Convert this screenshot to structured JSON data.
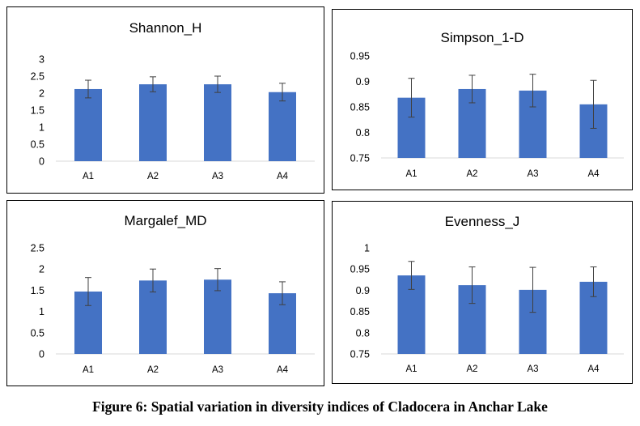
{
  "figure": {
    "caption": "Figure 6: Spatial variation in diversity indices of Cladocera in Anchar Lake"
  },
  "colors": {
    "bar": "#4472C4",
    "error_bar": "#404040",
    "axis": "#D9D9D9"
  },
  "chart_data": [
    {
      "type": "bar",
      "title": "Shannon_H",
      "categories": [
        "A1",
        "A2",
        "A3",
        "A4"
      ],
      "values": [
        2.12,
        2.26,
        2.26,
        2.03
      ],
      "error": [
        0.26,
        0.22,
        0.24,
        0.26
      ],
      "ylim": [
        0,
        3
      ],
      "yticks": [
        "0",
        "0.5",
        "1",
        "1.5",
        "2",
        "2.5",
        "3"
      ],
      "ytick_values": [
        0,
        0.5,
        1,
        1.5,
        2,
        2.5,
        3
      ],
      "grid": false,
      "legend": "none"
    },
    {
      "type": "bar",
      "title": "Simpson_1-D",
      "categories": [
        "A1",
        "A2",
        "A3",
        "A4"
      ],
      "values": [
        0.868,
        0.885,
        0.882,
        0.855
      ],
      "error": [
        0.038,
        0.027,
        0.032,
        0.047
      ],
      "ylim": [
        0.75,
        0.95
      ],
      "yticks": [
        "0.75",
        "0.8",
        "0.85",
        "0.9",
        "0.95"
      ],
      "ytick_values": [
        0.75,
        0.8,
        0.85,
        0.9,
        0.95
      ],
      "grid": false,
      "legend": "none"
    },
    {
      "type": "bar",
      "title": "Margalef_MD",
      "categories": [
        "A1",
        "A2",
        "A3",
        "A4"
      ],
      "values": [
        1.47,
        1.73,
        1.75,
        1.43
      ],
      "error": [
        0.33,
        0.27,
        0.26,
        0.27
      ],
      "ylim": [
        0,
        2.5
      ],
      "yticks": [
        "0",
        "0.5",
        "1",
        "1.5",
        "2",
        "2.5"
      ],
      "ytick_values": [
        0,
        0.5,
        1,
        1.5,
        2,
        2.5
      ],
      "grid": false,
      "legend": "none"
    },
    {
      "type": "bar",
      "title": "Evenness_J",
      "categories": [
        "A1",
        "A2",
        "A3",
        "A4"
      ],
      "values": [
        0.935,
        0.912,
        0.901,
        0.92
      ],
      "error": [
        0.033,
        0.043,
        0.053,
        0.035
      ],
      "ylim": [
        0.75,
        1
      ],
      "yticks": [
        "0.75",
        "0.8",
        "0.85",
        "0.9",
        "0.95",
        "1"
      ],
      "ytick_values": [
        0.75,
        0.8,
        0.85,
        0.9,
        0.95,
        1
      ],
      "grid": false,
      "legend": "none"
    }
  ]
}
